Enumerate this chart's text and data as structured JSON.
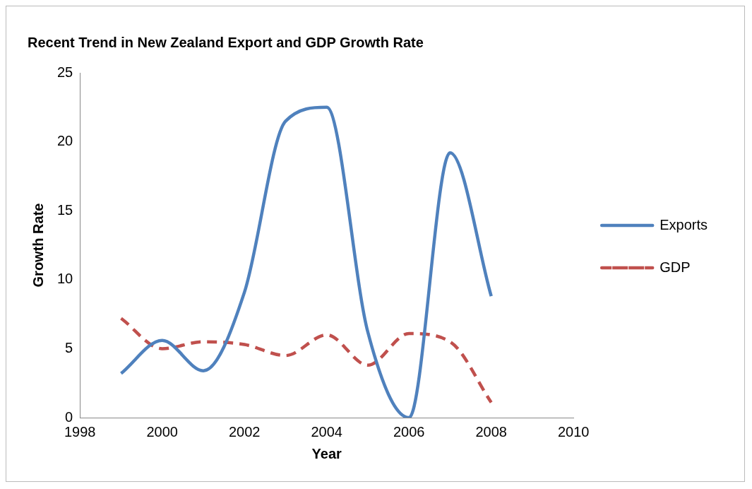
{
  "chart_data": {
    "type": "line",
    "title": "Recent Trend in New Zealand Export and GDP Growth Rate",
    "xlabel": "Year",
    "ylabel": "Growth Rate",
    "x": [
      1999,
      2000,
      2001,
      2002,
      2003,
      2004,
      2005,
      2006,
      2007,
      2008
    ],
    "series": [
      {
        "name": "Exports",
        "color": "#4f81bd",
        "line_style": "solid",
        "values": [
          3.2,
          5.6,
          3.4,
          9.1,
          21.5,
          22.5,
          6.2,
          0,
          19.2,
          8.8
        ]
      },
      {
        "name": "GDP",
        "color": "#c0504d",
        "line_style": "dashed",
        "values": [
          7.2,
          5.0,
          5.5,
          5.3,
          4.5,
          6.0,
          3.8,
          6.1,
          5.5,
          1.1
        ]
      }
    ],
    "xlim": [
      1998,
      2010
    ],
    "xticks": [
      1998,
      2000,
      2002,
      2004,
      2006,
      2008,
      2010
    ],
    "ylim": [
      0,
      25
    ],
    "yticks": [
      0,
      5,
      10,
      15,
      20,
      25
    ],
    "grid": false,
    "legend": "right",
    "marker": "none"
  }
}
